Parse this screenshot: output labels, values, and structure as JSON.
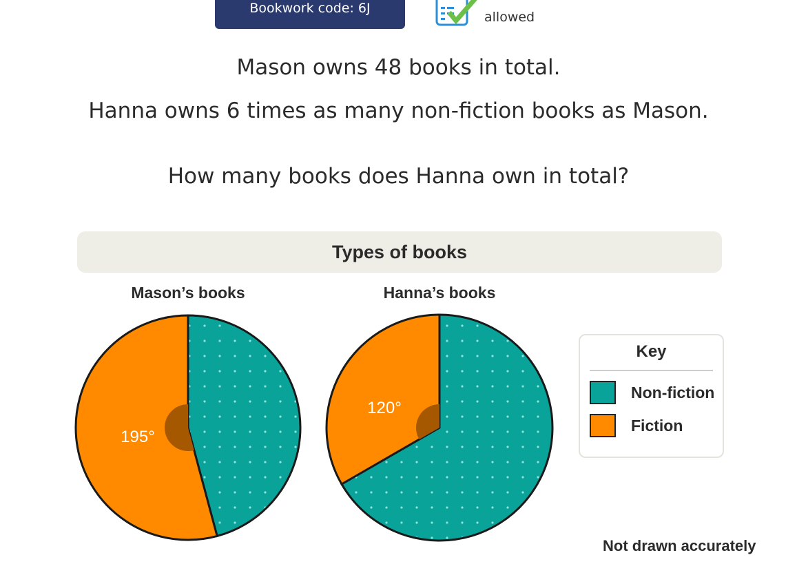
{
  "header": {
    "bookwork_code": "Bookwork code: 6J",
    "calculator_icon": "calculator-check-icon",
    "calculator_status": "allowed"
  },
  "question": {
    "line1": "Mason owns 48 books in total.",
    "line2": "Hanna owns 6 times as many non-fiction books as Mason.",
    "line3": "How many books does Hanna own in total?"
  },
  "chart_data": [
    {
      "type": "pie",
      "title": "Types of books",
      "subtitle": "Mason’s books",
      "unit": "degrees",
      "slices": [
        {
          "name": "Non-fiction",
          "value": 165
        },
        {
          "name": "Fiction",
          "value": 195,
          "label": "195°"
        }
      ]
    },
    {
      "type": "pie",
      "title": "Types of books",
      "subtitle": "Hanna’s books",
      "unit": "degrees",
      "slices": [
        {
          "name": "Non-fiction",
          "value": 240
        },
        {
          "name": "Fiction",
          "value": 120,
          "label": "120°"
        }
      ]
    }
  ],
  "chart": {
    "title": "Types of books",
    "mason_title": "Mason’s books",
    "hanna_title": "Hanna’s books",
    "mason_angle_label": "195°",
    "hanna_angle_label": "120°"
  },
  "key": {
    "title": "Key",
    "items": [
      {
        "label": "Non-fiction",
        "color": "#0aa39a"
      },
      {
        "label": "Fiction",
        "color": "#ff8a00"
      }
    ]
  },
  "note": "Not drawn accurately"
}
